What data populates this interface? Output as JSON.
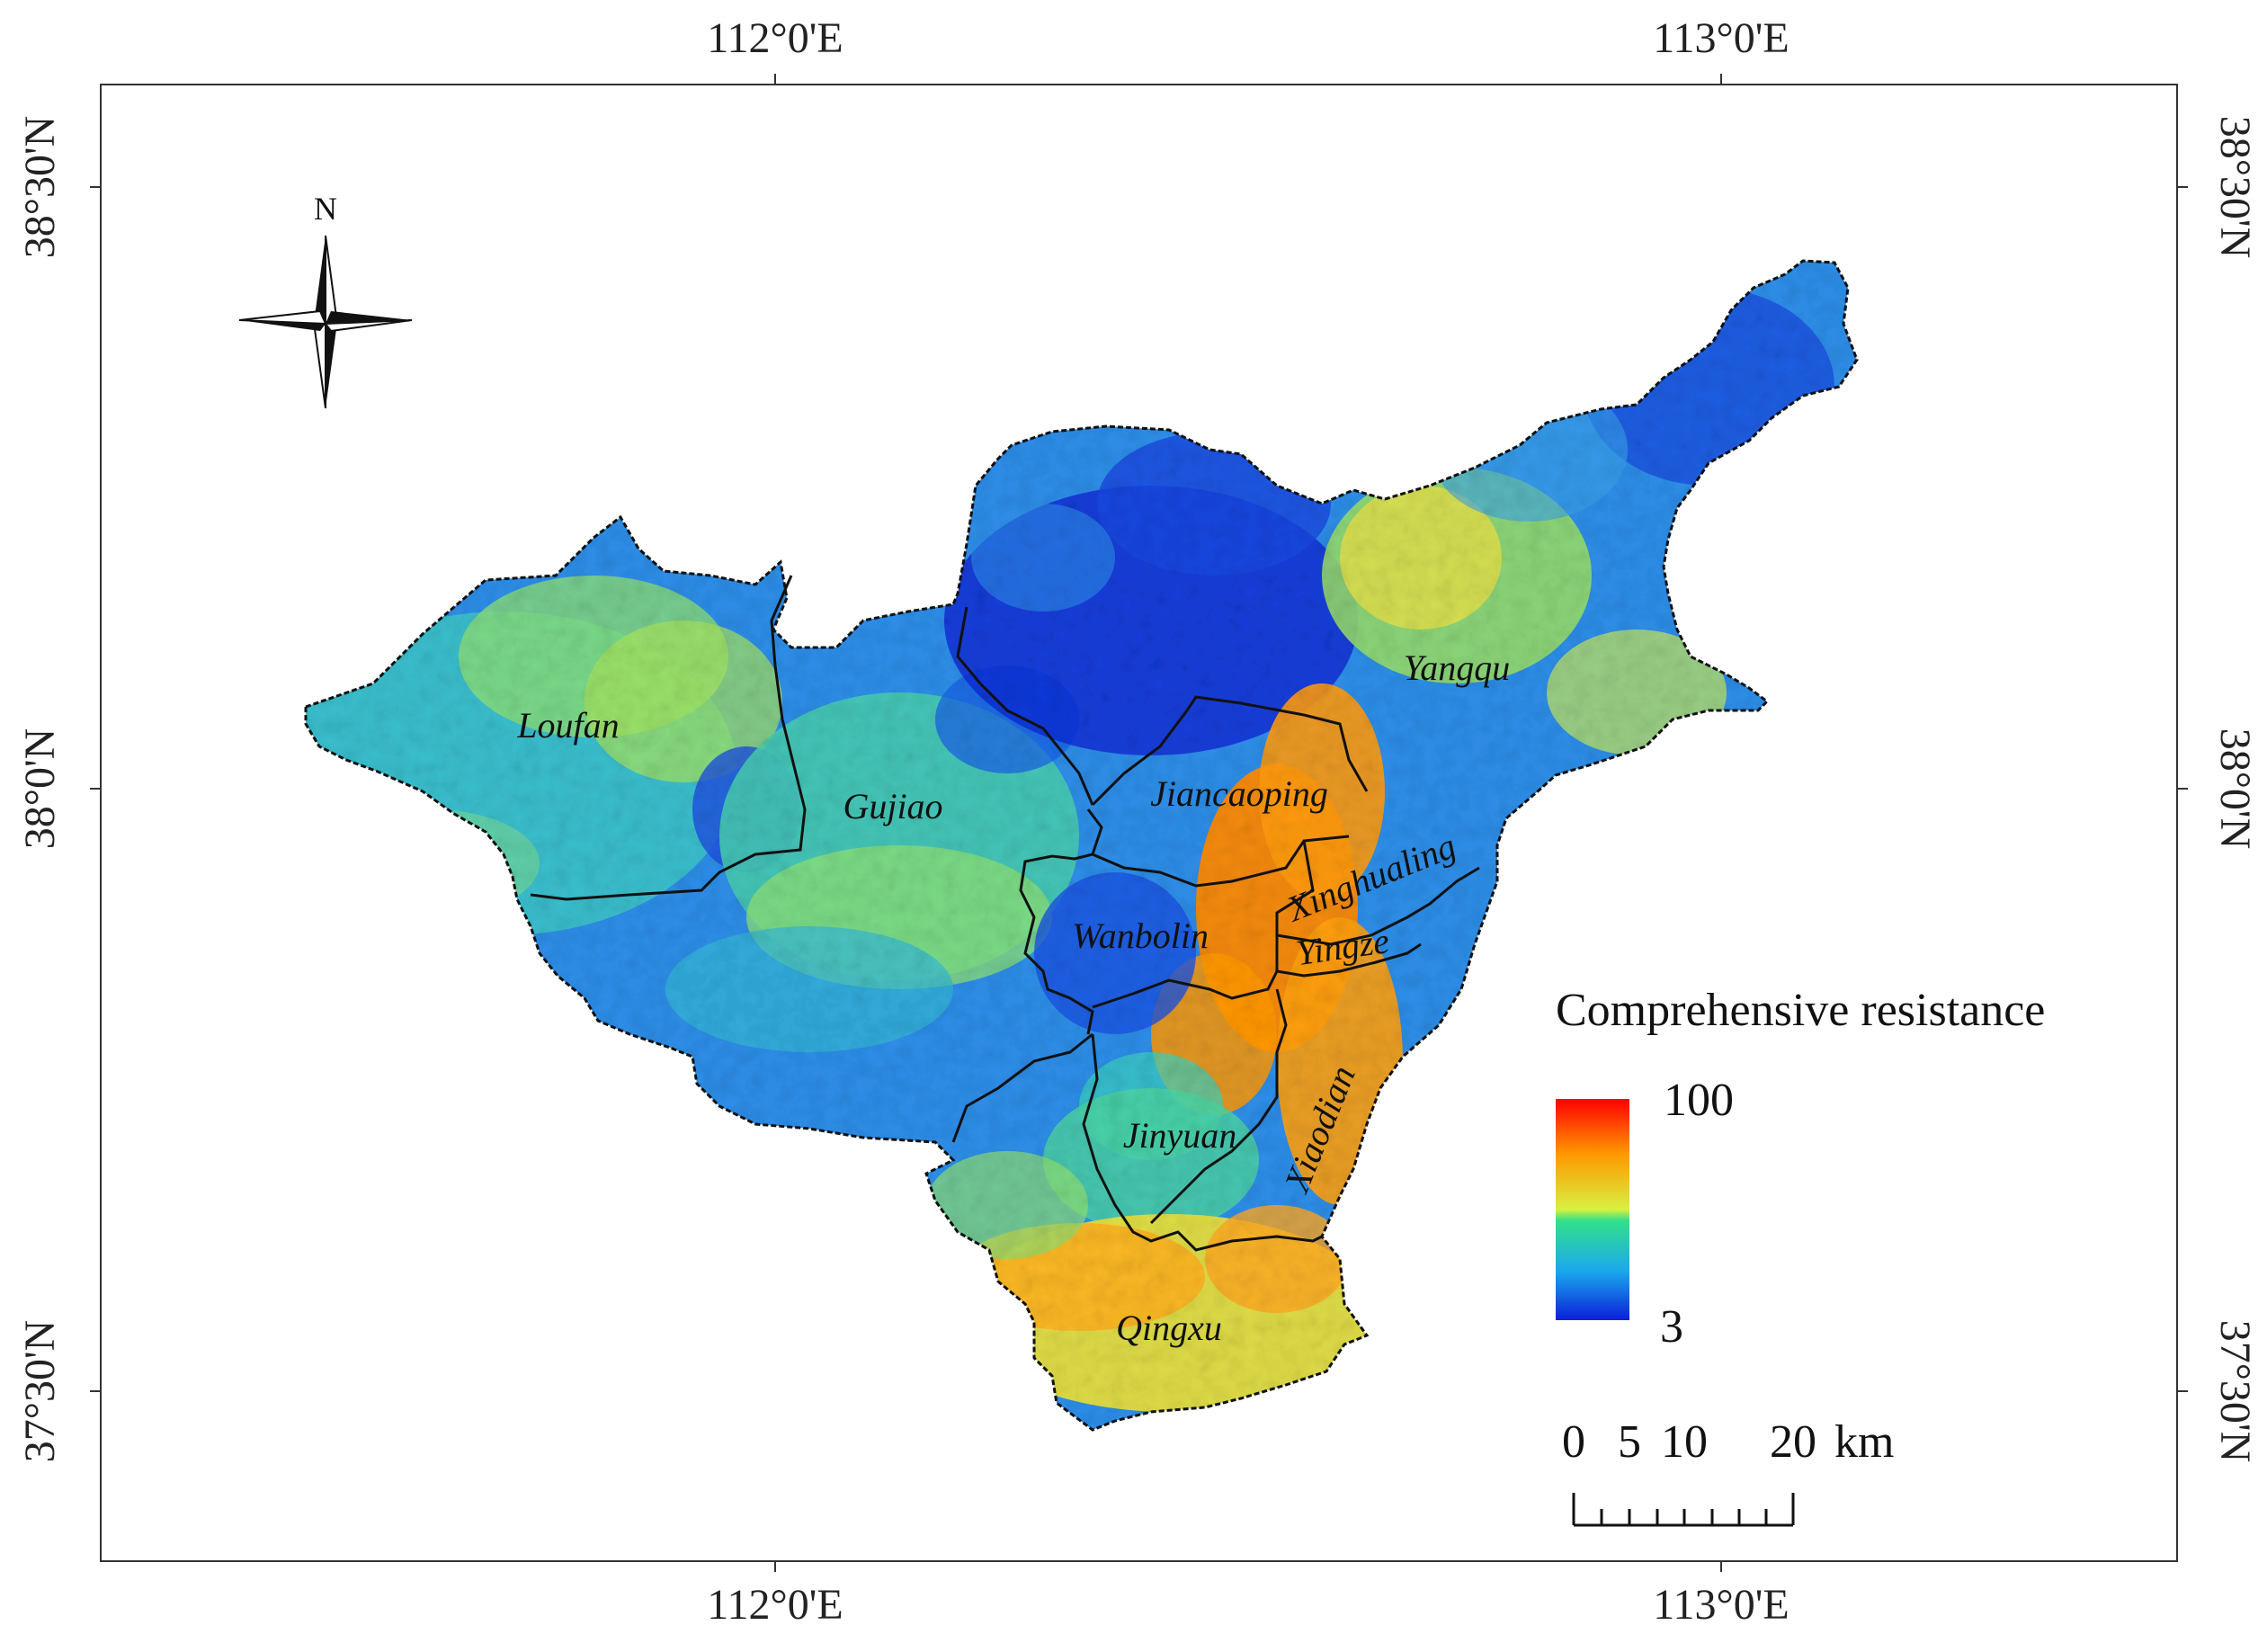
{
  "map": {
    "graticule": {
      "lon_labels": [
        "112°0'E",
        "113°0'E"
      ],
      "lat_labels": [
        "38°30'N",
        "38°0'N",
        "37°30'N"
      ]
    },
    "north_arrow": {
      "label": "N"
    },
    "regions": [
      {
        "id": "loufan",
        "name": "Loufan"
      },
      {
        "id": "gujiao",
        "name": "Gujiao"
      },
      {
        "id": "yangqu",
        "name": "Yangqu"
      },
      {
        "id": "jiancaoping",
        "name": "Jiancaoping"
      },
      {
        "id": "xinghualing",
        "name": "Xinghualing"
      },
      {
        "id": "wanbolin",
        "name": "Wanbolin"
      },
      {
        "id": "yingze",
        "name": "Yingze"
      },
      {
        "id": "jinyuan",
        "name": "Jinyuan"
      },
      {
        "id": "xiaodian",
        "name": "Xiaodian"
      },
      {
        "id": "qingxu",
        "name": "Qingxu"
      }
    ],
    "legend": {
      "title": "Comprehensive resistance",
      "max_label": "100",
      "min_label": "3",
      "colors": [
        "#ff0000",
        "#ff9900",
        "#d8f040",
        "#32e08a",
        "#1aa8ee",
        "#0a1fd8"
      ]
    },
    "scale_bar": {
      "labels": [
        "0",
        "5",
        "10",
        "20",
        "km"
      ]
    }
  }
}
